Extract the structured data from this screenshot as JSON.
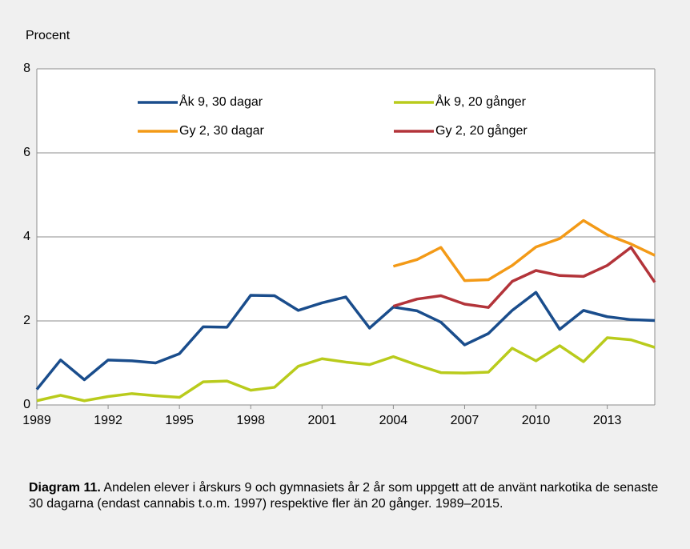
{
  "chart_data": {
    "type": "line",
    "y_label": "Procent",
    "categories": [
      1989,
      1990,
      1991,
      1992,
      1993,
      1994,
      1995,
      1996,
      1997,
      1998,
      1999,
      2000,
      2001,
      2002,
      2003,
      2004,
      2005,
      2006,
      2007,
      2008,
      2009,
      2010,
      2011,
      2012,
      2013,
      2014,
      2015
    ],
    "xlim": [
      1989,
      2015
    ],
    "xticks": [
      1989,
      1992,
      1995,
      1998,
      2001,
      2004,
      2007,
      2010,
      2013
    ],
    "ylim": [
      0,
      8
    ],
    "yticks": [
      0,
      2,
      4,
      6,
      8
    ],
    "grid": true,
    "series": [
      {
        "name": "Åk 9, 30 dagar",
        "color": "#1a4d8c",
        "values": [
          0.37,
          1.07,
          0.6,
          1.07,
          1.05,
          1.0,
          1.22,
          1.86,
          1.85,
          2.61,
          2.6,
          2.25,
          2.43,
          2.57,
          1.83,
          2.33,
          2.24,
          1.97,
          1.43,
          1.7,
          2.25,
          2.68,
          1.8,
          2.25,
          2.1,
          2.03,
          2.01
        ]
      },
      {
        "name": "Åk 9, 20 gånger",
        "color": "#b9cb1c",
        "values": [
          0.1,
          0.23,
          0.1,
          0.2,
          0.27,
          0.22,
          0.18,
          0.55,
          0.57,
          0.35,
          0.42,
          0.92,
          1.1,
          1.02,
          0.96,
          1.15,
          0.95,
          0.77,
          0.76,
          0.78,
          1.35,
          1.05,
          1.41,
          1.03,
          1.6,
          1.55,
          1.37
        ]
      },
      {
        "name": "Gy 2, 30 dagar",
        "color": "#f39a17",
        "values": [
          null,
          null,
          null,
          null,
          null,
          null,
          null,
          null,
          null,
          null,
          null,
          null,
          null,
          null,
          null,
          3.3,
          3.46,
          3.75,
          2.96,
          2.98,
          3.32,
          3.76,
          3.96,
          4.39,
          4.05,
          3.83,
          3.56
        ]
      },
      {
        "name": "Gy 2, 20 gånger",
        "color": "#b3343a",
        "values": [
          null,
          null,
          null,
          null,
          null,
          null,
          null,
          null,
          null,
          null,
          null,
          null,
          null,
          null,
          null,
          2.35,
          2.52,
          2.6,
          2.4,
          2.32,
          2.94,
          3.2,
          3.08,
          3.06,
          3.32,
          3.75,
          2.92
        ]
      }
    ],
    "caption_label": "Diagram 11.",
    "caption_text": "Andelen elever i årskurs 9 och gymnasiets år 2 år som uppgett att de använt narkotika de senaste 30 dagarna (endast cannabis t.o.m. 1997) respektive fler än 20 gånger. 1989–2015."
  }
}
